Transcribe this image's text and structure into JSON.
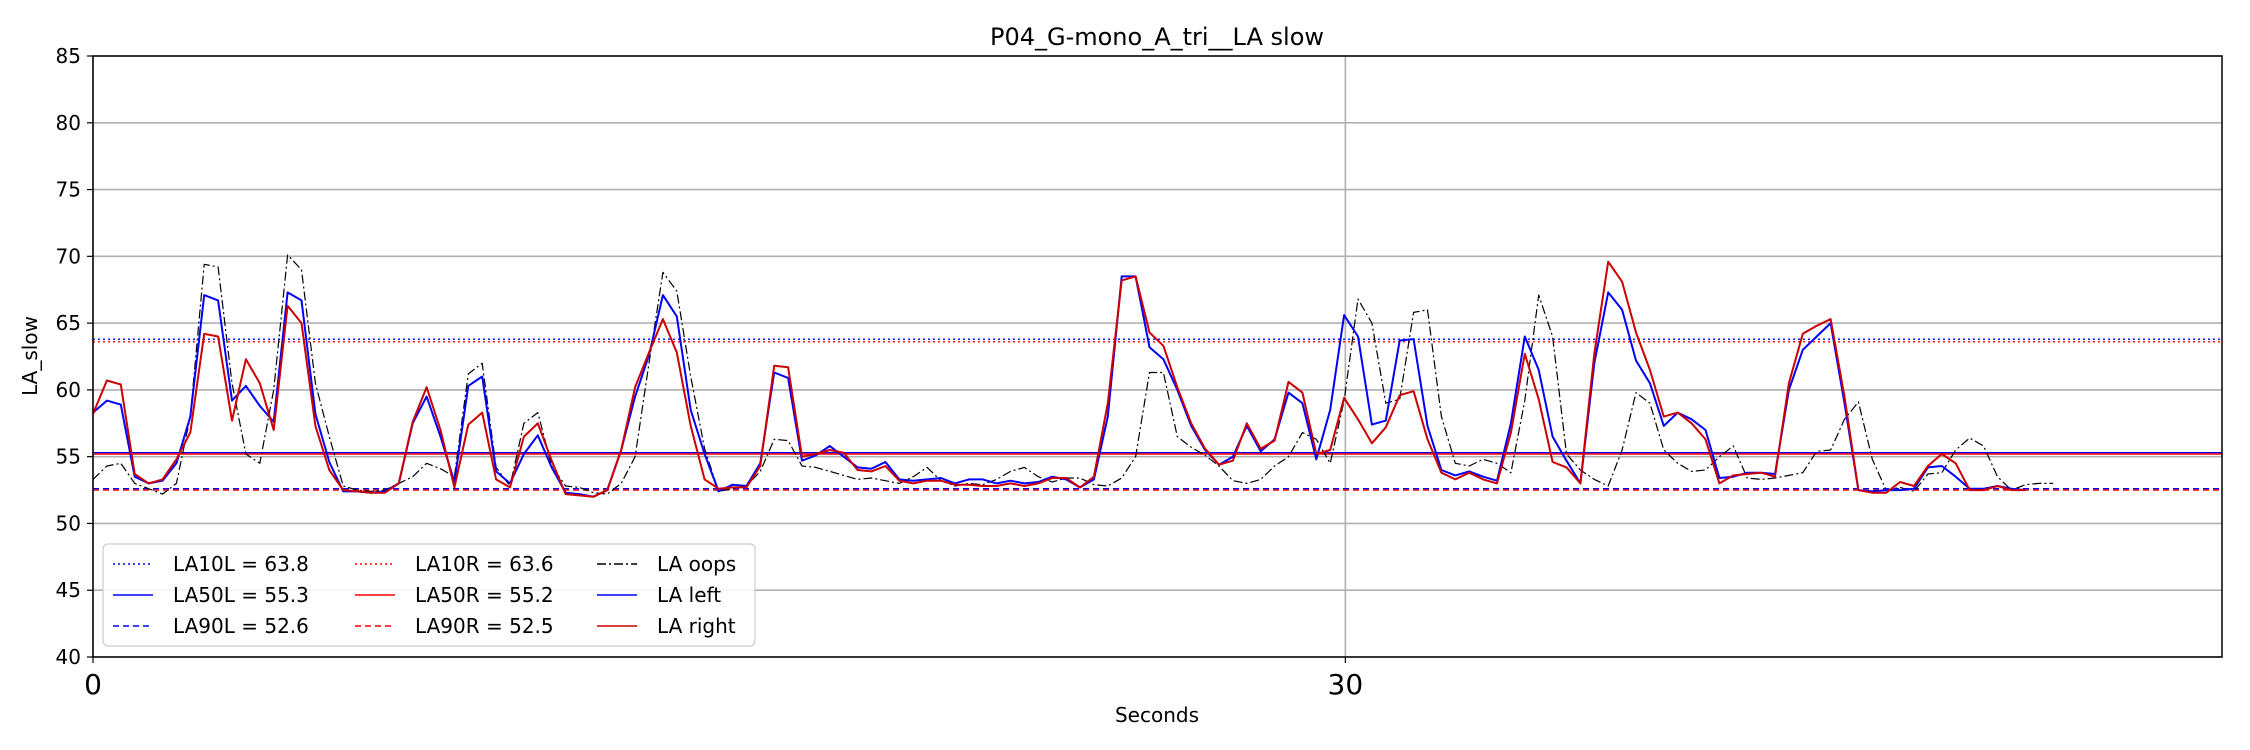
{
  "chart_data": {
    "type": "line",
    "title": "P04_G-mono_A_tri__LA slow",
    "xlabel": "Seconds",
    "ylabel": "LA_slow",
    "xlim": [
      0,
      51
    ],
    "ylim": [
      40,
      85
    ],
    "x_ticks": [
      0,
      30
    ],
    "x_tick_labels": [
      "0",
      "30"
    ],
    "y_ticks": [
      40,
      45,
      50,
      55,
      60,
      65,
      70,
      75,
      80,
      85
    ],
    "y_tick_labels": [
      "40",
      "45",
      "50",
      "55",
      "60",
      "65",
      "70",
      "75",
      "80",
      "85"
    ],
    "grid": true,
    "legend_position": "lower-left",
    "sample_step": 0.333,
    "legend": [
      {
        "label": "LA10L = 63.8",
        "color": "#0000ff",
        "style": "dotted"
      },
      {
        "label": "LA50L = 55.3",
        "color": "#0000ff",
        "style": "solid"
      },
      {
        "label": "LA90L = 52.6",
        "color": "#0000ff",
        "style": "dashed"
      },
      {
        "label": "LA10R = 63.6",
        "color": "#ff0000",
        "style": "dotted"
      },
      {
        "label": "LA50R = 55.2",
        "color": "#ff0000",
        "style": "solid"
      },
      {
        "label": "LA90R = 52.5",
        "color": "#ff0000",
        "style": "dashed"
      },
      {
        "label": "LA oops",
        "color": "#000000",
        "style": "dashdot"
      },
      {
        "label": "LA left",
        "color": "#0000ff",
        "style": "solid"
      },
      {
        "label": "LA right",
        "color": "#cc0000",
        "style": "solid"
      }
    ],
    "hlines": [
      {
        "name": "LA10L",
        "value": 63.8,
        "color": "#0000ff",
        "style": "dotted"
      },
      {
        "name": "LA50L",
        "value": 55.3,
        "color": "#0000ff",
        "style": "solid"
      },
      {
        "name": "LA90L",
        "value": 52.6,
        "color": "#0000ff",
        "style": "dashed"
      },
      {
        "name": "LA10R",
        "value": 63.6,
        "color": "#ff0000",
        "style": "dotted"
      },
      {
        "name": "LA50R",
        "value": 55.2,
        "color": "#ff0000",
        "style": "solid"
      },
      {
        "name": "LA90R",
        "value": 52.5,
        "color": "#ff0000",
        "style": "dashed"
      }
    ],
    "series": [
      {
        "name": "LA oops",
        "color": "#000000",
        "style": "dashdot",
        "values": [
          53.3,
          54.3,
          54.5,
          53.0,
          52.6,
          52.2,
          53.0,
          58.0,
          69.4,
          69.2,
          60.5,
          55.2,
          54.5,
          60.0,
          70.1,
          69.0,
          60.5,
          56.5,
          52.8,
          52.5,
          52.4,
          52.5,
          53.0,
          53.5,
          54.5,
          54.1,
          53.5,
          61.2,
          62.0,
          54.2,
          52.8,
          57.5,
          58.3,
          54.3,
          52.8,
          52.7,
          52.3,
          52.2,
          53.0,
          55.0,
          62.0,
          68.8,
          67.4,
          61.0,
          55.6,
          52.4,
          52.6,
          52.8,
          53.9,
          56.3,
          56.2,
          54.3,
          54.2,
          53.9,
          53.6,
          53.3,
          53.4,
          53.2,
          53.0,
          53.5,
          54.2,
          53.2,
          52.8,
          53.0,
          52.9,
          53.3,
          53.9,
          54.2,
          53.5,
          53.1,
          53.4,
          53.4,
          52.9,
          52.8,
          53.4,
          55.0,
          61.3,
          61.3,
          56.5,
          55.7,
          55.1,
          54.3,
          53.2,
          53.0,
          53.3,
          54.3,
          55.0,
          56.8,
          56.3,
          54.5,
          59.2,
          66.8,
          65.0,
          59.0,
          59.3,
          65.8,
          66.0,
          58.0,
          54.5,
          54.3,
          54.8,
          54.5,
          53.8,
          59.2,
          67.1,
          64.0,
          55.2,
          54.0,
          53.3,
          52.8,
          55.5,
          59.8,
          59.0,
          55.5,
          54.5,
          53.9,
          54.0,
          55.0,
          55.8,
          53.4,
          53.3,
          53.4,
          53.6,
          53.8,
          55.4,
          55.5,
          57.8,
          59.1,
          54.8,
          52.5,
          52.7,
          52.4,
          53.7,
          53.8,
          55.5,
          56.4,
          55.8,
          53.5,
          52.5,
          52.9,
          53.0,
          53.0
        ]
      },
      {
        "name": "LA left",
        "color": "#0000ff",
        "style": "solid",
        "values": [
          58.3,
          59.2,
          58.9,
          53.5,
          53.0,
          53.2,
          54.5,
          58.0,
          67.1,
          66.7,
          59.2,
          60.3,
          58.8,
          57.6,
          67.3,
          66.7,
          58.2,
          54.6,
          52.4,
          52.4,
          52.3,
          52.4,
          53.0,
          57.5,
          59.5,
          56.5,
          53.1,
          60.3,
          61.0,
          53.9,
          53.0,
          55.2,
          56.6,
          54.2,
          52.3,
          52.2,
          52.0,
          52.5,
          55.5,
          59.5,
          62.6,
          67.1,
          65.5,
          58.5,
          55.2,
          52.4,
          52.9,
          52.8,
          54.5,
          61.3,
          60.9,
          54.7,
          55.1,
          55.8,
          55.0,
          54.2,
          54.1,
          54.6,
          53.3,
          53.2,
          53.3,
          53.4,
          53.0,
          53.3,
          53.3,
          53.0,
          53.2,
          53.0,
          53.1,
          53.5,
          53.3,
          52.7,
          53.3,
          58.0,
          68.5,
          68.5,
          63.2,
          62.3,
          60.0,
          57.3,
          55.5,
          54.4,
          55.0,
          57.3,
          55.4,
          56.3,
          59.8,
          59.0,
          54.8,
          58.5,
          65.6,
          64.0,
          57.4,
          57.7,
          63.7,
          63.8,
          57.3,
          54.0,
          53.6,
          53.9,
          53.5,
          53.2,
          57.5,
          64.0,
          61.5,
          56.5,
          54.7,
          53.0,
          62.0,
          67.3,
          66.0,
          62.2,
          60.5,
          57.3,
          58.3,
          57.8,
          57.0,
          53.4,
          53.5,
          53.8,
          53.8,
          53.7,
          60.0,
          63.0,
          64.0,
          65.0,
          59.0,
          52.5,
          52.4,
          52.5,
          52.5,
          52.6,
          54.2,
          54.3,
          53.5,
          52.6,
          52.6,
          52.8,
          52.6,
          52.5
        ]
      },
      {
        "name": "LA right",
        "color": "#cc0000",
        "style": "solid",
        "values": [
          58.2,
          60.7,
          60.4,
          53.7,
          53.0,
          53.3,
          54.8,
          56.8,
          64.2,
          64.0,
          57.7,
          62.3,
          60.5,
          57.0,
          66.3,
          65.0,
          57.3,
          54.0,
          52.5,
          52.4,
          52.3,
          52.3,
          53.0,
          57.6,
          60.2,
          57.0,
          52.7,
          57.4,
          58.3,
          53.3,
          52.7,
          56.5,
          57.5,
          54.7,
          52.2,
          52.1,
          52.0,
          52.5,
          55.5,
          60.2,
          62.8,
          65.3,
          62.8,
          57.3,
          53.3,
          52.6,
          52.7,
          52.7,
          54.3,
          61.8,
          61.7,
          55.0,
          55.2,
          55.5,
          55.3,
          54.0,
          53.9,
          54.3,
          53.2,
          53.0,
          53.2,
          53.2,
          52.9,
          52.9,
          52.8,
          52.8,
          53.0,
          52.8,
          53.0,
          53.4,
          53.4,
          52.7,
          53.5,
          59.0,
          68.2,
          68.5,
          64.3,
          63.3,
          60.2,
          57.5,
          55.6,
          54.4,
          54.7,
          57.5,
          55.6,
          56.2,
          60.6,
          59.8,
          55.2,
          55.5,
          59.4,
          57.8,
          56.0,
          57.2,
          59.6,
          59.9,
          56.3,
          53.8,
          53.3,
          53.8,
          53.3,
          53.0,
          56.8,
          62.7,
          59.3,
          54.6,
          54.2,
          53.0,
          62.7,
          69.6,
          68.1,
          64.3,
          61.5,
          58.0,
          58.3,
          57.5,
          56.3,
          53.0,
          53.6,
          53.7,
          53.8,
          53.5,
          60.5,
          64.2,
          64.8,
          65.3,
          59.5,
          52.5,
          52.3,
          52.3,
          53.1,
          52.8,
          54.3,
          55.2,
          54.5,
          52.5,
          52.5,
          52.8,
          52.5,
          52.5
        ]
      }
    ]
  }
}
